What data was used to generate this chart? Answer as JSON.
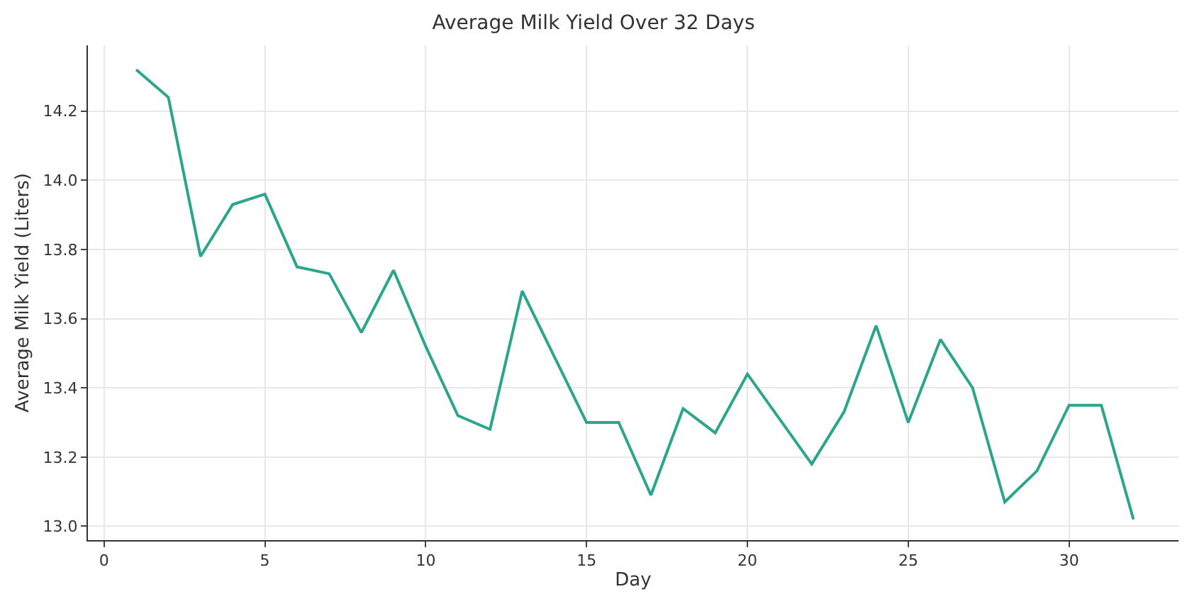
{
  "chart_data": {
    "type": "line",
    "title": "Average Milk Yield Over 32 Days",
    "xlabel": "Day",
    "ylabel": "Average Milk Yield (Liters)",
    "x": [
      1,
      2,
      3,
      4,
      5,
      6,
      7,
      8,
      9,
      10,
      11,
      12,
      13,
      14,
      15,
      16,
      17,
      18,
      19,
      20,
      21,
      22,
      23,
      24,
      25,
      26,
      27,
      28,
      29,
      30,
      31,
      32
    ],
    "series": [
      {
        "color": "#2ca58d",
        "values": [
          14.32,
          14.24,
          13.78,
          13.93,
          13.96,
          13.75,
          13.73,
          13.56,
          13.74,
          13.52,
          13.32,
          13.28,
          13.68,
          13.49,
          13.3,
          13.3,
          13.09,
          13.34,
          13.27,
          13.44,
          13.31,
          13.18,
          13.33,
          13.58,
          13.3,
          13.54,
          13.4,
          13.07,
          13.16,
          13.35,
          13.35,
          13.02
        ]
      }
    ],
    "xlim": [
      -0.5,
      33.4
    ],
    "ylim": [
      12.96,
      14.39
    ],
    "xticks": [
      0,
      5,
      10,
      15,
      20,
      25,
      30
    ],
    "yticks": [
      {
        "value": 13.0,
        "label": "13.0"
      },
      {
        "value": 13.2,
        "label": "13.2"
      },
      {
        "value": 13.4,
        "label": "13.4"
      },
      {
        "value": 13.6,
        "label": "13.6"
      },
      {
        "value": 13.8,
        "label": "13.8"
      },
      {
        "value": 14.0,
        "label": "14.0"
      },
      {
        "value": 14.2,
        "label": "14.2"
      }
    ],
    "grid": true,
    "marker": "none",
    "line_style": "solid",
    "legend": false
  }
}
